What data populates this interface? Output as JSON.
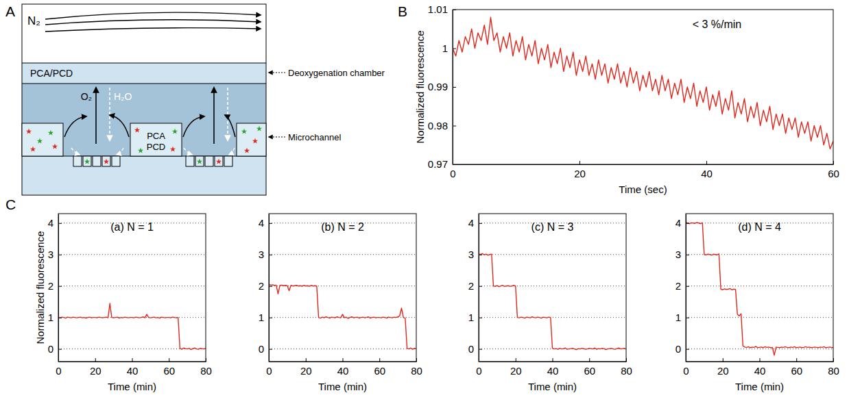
{
  "panel_labels": [
    "A",
    "B",
    "C"
  ],
  "diagram": {
    "gas": "N₂",
    "chamber_fill": "PCA/PCD",
    "chamber_label": "Deoxygenation chamber",
    "oxygen": "O₂",
    "water": "H₂O",
    "channel_fill": [
      "PCA",
      "PCD"
    ],
    "channel_label": "Microchannel"
  },
  "chart_data": [
    {
      "type": "line",
      "annotation": "< 3 %/min",
      "xlabel": "Time (sec)",
      "ylabel": "Normalized fluorescence",
      "color": "#e3261c",
      "grid": false,
      "xlim": [
        0,
        60
      ],
      "xticks": [
        0,
        20,
        40,
        60
      ],
      "ylim": [
        0.97,
        1.01
      ],
      "yticks": [
        0.97,
        0.98,
        0.99,
        1,
        1.01
      ],
      "x": [
        0,
        0.5,
        1,
        1.5,
        2,
        2.5,
        3,
        3.5,
        4,
        4.5,
        5,
        5.5,
        6,
        6.5,
        7,
        7.5,
        8,
        8.5,
        9,
        9.5,
        10,
        10.5,
        11,
        11.5,
        12,
        12.5,
        13,
        13.5,
        14,
        14.5,
        15,
        15.5,
        16,
        16.5,
        17,
        17.5,
        18,
        18.5,
        19,
        19.5,
        20,
        20.5,
        21,
        21.5,
        22,
        22.5,
        23,
        23.5,
        24,
        24.5,
        25,
        25.5,
        26,
        26.5,
        27,
        27.5,
        28,
        28.5,
        29,
        29.5,
        30,
        30.5,
        31,
        31.5,
        32,
        32.5,
        33,
        33.5,
        34,
        34.5,
        35,
        35.5,
        36,
        36.5,
        37,
        37.5,
        38,
        38.5,
        39,
        39.5,
        40,
        40.5,
        41,
        41.5,
        42,
        42.5,
        43,
        43.5,
        44,
        44.5,
        45,
        45.5,
        46,
        46.5,
        47,
        47.5,
        48,
        48.5,
        49,
        49.5,
        50,
        50.5,
        51,
        51.5,
        52,
        52.5,
        53,
        53.5,
        54,
        54.5,
        55,
        55.5,
        56,
        56.5,
        57,
        57.5,
        58,
        58.5,
        59,
        59.5,
        60
      ],
      "values": [
        1.0,
        0.998,
        1.002,
        0.999,
        1.003,
        1.001,
        1.005,
        1.0,
        1.004,
        1.002,
        1.006,
        1.001,
        1.008,
        1.002,
        1.004,
        0.999,
        1.003,
        1.0,
        1.004,
        0.998,
        1.002,
        0.999,
        1.003,
        0.997,
        1.001,
        0.998,
        1.002,
        0.996,
        1.0,
        0.997,
        1.001,
        0.995,
        0.999,
        0.996,
        1.0,
        0.994,
        0.998,
        0.995,
        0.999,
        0.993,
        0.997,
        0.994,
        0.998,
        0.993,
        0.996,
        0.992,
        0.997,
        0.993,
        0.996,
        0.991,
        0.995,
        0.992,
        0.996,
        0.991,
        0.994,
        0.99,
        0.995,
        0.991,
        0.994,
        0.989,
        0.993,
        0.99,
        0.994,
        0.989,
        0.992,
        0.988,
        0.993,
        0.989,
        0.992,
        0.987,
        0.991,
        0.988,
        0.992,
        0.986,
        0.99,
        0.987,
        0.991,
        0.985,
        0.989,
        0.986,
        0.99,
        0.984,
        0.988,
        0.985,
        0.989,
        0.983,
        0.987,
        0.984,
        0.989,
        0.982,
        0.986,
        0.983,
        0.987,
        0.981,
        0.985,
        0.982,
        0.986,
        0.98,
        0.984,
        0.981,
        0.985,
        0.979,
        0.983,
        0.98,
        0.983,
        0.978,
        0.982,
        0.979,
        0.982,
        0.977,
        0.981,
        0.978,
        0.981,
        0.976,
        0.98,
        0.977,
        0.98,
        0.975,
        0.978,
        0.974,
        0.976
      ]
    },
    {
      "type": "line",
      "title": "(a) N = 1",
      "xlabel": "Time (min)",
      "ylabel": "Normalized fluorescence",
      "color": "#e3261c",
      "grid": "y",
      "xlim": [
        0,
        80
      ],
      "xticks": [
        0,
        20,
        40,
        60,
        80
      ],
      "ylim": [
        -0.4,
        4.3
      ],
      "yticks": [
        0,
        1,
        2,
        3,
        4
      ],
      "x": [
        0,
        1,
        2,
        3,
        4,
        5,
        6,
        7,
        8,
        9,
        10,
        11,
        12,
        13,
        14,
        15,
        16,
        17,
        18,
        19,
        20,
        21,
        22,
        23,
        24,
        25,
        26,
        27,
        28,
        29,
        30,
        31,
        32,
        33,
        34,
        35,
        36,
        37,
        38,
        39,
        40,
        41,
        42,
        43,
        44,
        45,
        46,
        47,
        48,
        49,
        50,
        51,
        52,
        53,
        54,
        55,
        56,
        57,
        58,
        59,
        60,
        61,
        62,
        63,
        64,
        65,
        66,
        67,
        68,
        69,
        70,
        71,
        72,
        73,
        74,
        75,
        76,
        77,
        78,
        79,
        80
      ],
      "values": [
        1.0,
        0.99,
        1.01,
        1.0,
        0.98,
        1.01,
        1.0,
        0.99,
        1.01,
        1.0,
        0.99,
        1.0,
        1.01,
        0.99,
        1.0,
        0.98,
        1.0,
        1.01,
        0.99,
        1.0,
        1.0,
        0.99,
        1.01,
        1.0,
        0.99,
        1.0,
        1.01,
        0.99,
        1.45,
        1.0,
        0.99,
        1.0,
        1.01,
        0.98,
        1.0,
        0.99,
        1.01,
        1.0,
        0.99,
        1.0,
        1.0,
        0.99,
        1.01,
        1.0,
        0.99,
        1.0,
        1.02,
        0.99,
        1.1,
        1.0,
        0.99,
        1.0,
        1.01,
        0.99,
        1.0,
        0.98,
        1.01,
        1.0,
        0.99,
        1.0,
        1.0,
        0.99,
        1.01,
        1.0,
        0.99,
        1.0,
        0.02,
        -0.01,
        0.03,
        0.01,
        0.0,
        0.02,
        -0.02,
        0.01,
        0.03,
        0.0,
        -0.01,
        0.02,
        0.01,
        0.0,
        0.02
      ]
    },
    {
      "type": "line",
      "title": "(b) N = 2",
      "xlabel": "Time (min)",
      "color": "#e3261c",
      "grid": "y",
      "xlim": [
        0,
        80
      ],
      "xticks": [
        0,
        20,
        40,
        60,
        80
      ],
      "ylim": [
        -0.4,
        4.3
      ],
      "yticks": [
        0,
        1,
        2,
        3,
        4
      ],
      "x": [
        0,
        1,
        2,
        3,
        4,
        5,
        6,
        7,
        8,
        9,
        10,
        11,
        12,
        13,
        14,
        15,
        16,
        17,
        18,
        19,
        20,
        21,
        22,
        23,
        24,
        25,
        26,
        27,
        28,
        29,
        30,
        31,
        32,
        33,
        34,
        35,
        36,
        37,
        38,
        39,
        40,
        41,
        42,
        43,
        44,
        45,
        46,
        47,
        48,
        49,
        50,
        51,
        52,
        53,
        54,
        55,
        56,
        57,
        58,
        59,
        60,
        61,
        62,
        63,
        64,
        65,
        66,
        67,
        68,
        69,
        70,
        71,
        72,
        73,
        74,
        75,
        76,
        77,
        78,
        79,
        80
      ],
      "values": [
        2.05,
        2.03,
        2.04,
        2.02,
        2.03,
        1.75,
        2.02,
        2.03,
        2.01,
        2.02,
        2.01,
        1.85,
        2.02,
        2.0,
        2.01,
        2.02,
        2.0,
        2.01,
        1.99,
        2.02,
        2.0,
        2.01,
        1.99,
        2.02,
        2.0,
        2.01,
        2.0,
        1.0,
        0.98,
        1.01,
        0.99,
        1.02,
        1.0,
        0.98,
        1.01,
        1.0,
        0.99,
        1.02,
        1.0,
        0.99,
        1.1,
        0.99,
        1.01,
        0.97,
        1.0,
        1.02,
        0.99,
        1.0,
        1.01,
        0.98,
        1.0,
        1.01,
        0.99,
        1.0,
        1.02,
        0.98,
        1.0,
        1.01,
        0.99,
        1.0,
        1.0,
        0.99,
        1.01,
        1.0,
        0.98,
        1.01,
        1.0,
        0.99,
        1.01,
        1.0,
        1.02,
        1.05,
        1.3,
        1.0,
        0.98,
        0.02,
        0.0,
        0.03,
        -0.01,
        0.02,
        0.01
      ]
    },
    {
      "type": "line",
      "title": "(c) N = 3",
      "xlabel": "Time (min)",
      "color": "#e3261c",
      "grid": "y",
      "xlim": [
        0,
        80
      ],
      "xticks": [
        0,
        20,
        40,
        60,
        80
      ],
      "ylim": [
        -0.4,
        4.3
      ],
      "yticks": [
        0,
        1,
        2,
        3,
        4
      ],
      "x": [
        0,
        1,
        2,
        3,
        4,
        5,
        6,
        7,
        8,
        9,
        10,
        11,
        12,
        13,
        14,
        15,
        16,
        17,
        18,
        19,
        20,
        21,
        22,
        23,
        24,
        25,
        26,
        27,
        28,
        29,
        30,
        31,
        32,
        33,
        34,
        35,
        36,
        37,
        38,
        39,
        40,
        41,
        42,
        43,
        44,
        45,
        46,
        47,
        48,
        49,
        50,
        51,
        52,
        53,
        54,
        55,
        56,
        57,
        58,
        59,
        60,
        61,
        62,
        63,
        64,
        65,
        66,
        67,
        68,
        69,
        70,
        71,
        72,
        73,
        74,
        75,
        76,
        77,
        78,
        79,
        80
      ],
      "values": [
        3.02,
        3.0,
        3.03,
        2.99,
        3.01,
        2.98,
        3.0,
        3.01,
        2.0,
        1.99,
        2.01,
        1.98,
        2.0,
        2.02,
        1.99,
        2.0,
        2.01,
        1.99,
        2.0,
        2.02,
        2.0,
        1.0,
        0.99,
        1.01,
        1.0,
        0.98,
        1.01,
        1.0,
        0.99,
        1.02,
        1.0,
        0.99,
        1.01,
        1.0,
        0.98,
        1.01,
        1.0,
        0.99,
        1.01,
        1.0,
        0.02,
        0.0,
        0.01,
        -0.01,
        0.02,
        0.0,
        0.01,
        0.03,
        -0.01,
        0.0,
        0.01,
        0.02,
        0.0,
        -0.02,
        0.01,
        0.0,
        0.02,
        0.01,
        -0.01,
        0.0,
        0.02,
        0.01,
        0.0,
        0.03,
        -0.01,
        0.01,
        0.0,
        0.02,
        0.01,
        -0.02,
        0.0,
        0.01,
        0.02,
        0.0,
        -0.01,
        0.01,
        0.03,
        0.0,
        0.01,
        0.02,
        0.0
      ]
    },
    {
      "type": "line",
      "title": "(d) N = 4",
      "xlabel": "Time (min)",
      "color": "#e3261c",
      "grid": "y",
      "xlim": [
        0,
        80
      ],
      "xticks": [
        0,
        20,
        40,
        60,
        80
      ],
      "ylim": [
        -0.4,
        4.3
      ],
      "yticks": [
        0,
        1,
        2,
        3,
        4
      ],
      "x": [
        0,
        1,
        2,
        3,
        4,
        5,
        6,
        7,
        8,
        9,
        10,
        11,
        12,
        13,
        14,
        15,
        16,
        17,
        18,
        19,
        20,
        21,
        22,
        23,
        24,
        25,
        26,
        27,
        28,
        29,
        30,
        31,
        32,
        33,
        34,
        35,
        36,
        37,
        38,
        39,
        40,
        41,
        42,
        43,
        44,
        45,
        46,
        47,
        48,
        49,
        50,
        51,
        52,
        53,
        54,
        55,
        56,
        57,
        58,
        59,
        60,
        61,
        62,
        63,
        64,
        65,
        66,
        67,
        68,
        69,
        70,
        71,
        72,
        73,
        74,
        75,
        76,
        77,
        78,
        79,
        80
      ],
      "values": [
        4.02,
        4.0,
        3.98,
        4.01,
        4.0,
        3.99,
        4.02,
        4.0,
        3.98,
        4.01,
        3.0,
        2.99,
        3.01,
        3.0,
        2.98,
        3.01,
        3.0,
        2.99,
        3.02,
        1.9,
        1.88,
        1.91,
        1.89,
        1.9,
        1.92,
        1.88,
        1.9,
        1.89,
        1.1,
        1.05,
        1.12,
        0.1,
        0.06,
        0.05,
        0.07,
        0.04,
        0.06,
        0.05,
        0.08,
        0.04,
        0.05,
        0.06,
        0.04,
        0.07,
        0.05,
        0.06,
        0.04,
        0.05,
        -0.2,
        0.06,
        0.05,
        0.04,
        0.06,
        0.05,
        0.07,
        0.05,
        0.04,
        0.06,
        0.05,
        0.07,
        0.04,
        0.05,
        0.06,
        0.04,
        0.05,
        0.07,
        0.05,
        0.06,
        0.04,
        0.05,
        0.06,
        0.05,
        0.04,
        0.06,
        0.05,
        0.07,
        0.04,
        0.05,
        0.06,
        0.05,
        0.04
      ]
    }
  ]
}
